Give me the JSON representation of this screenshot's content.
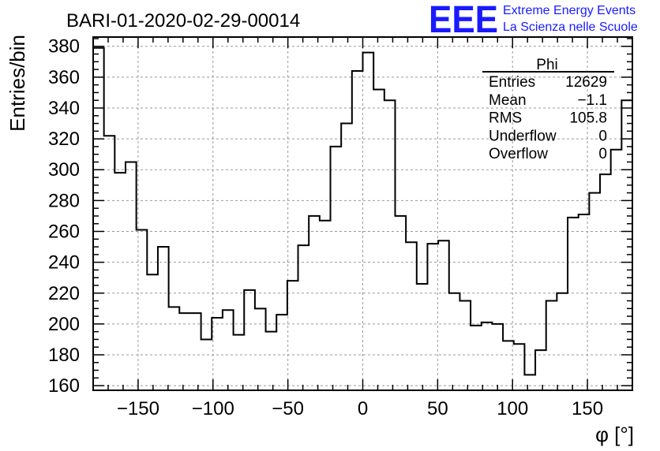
{
  "header": {
    "run_title": "BARI-01-2020-02-29-00014",
    "logo_text": "EEE",
    "logo_line1": "Extreme Energy Events",
    "logo_line2": "La Scienza nelle Scuole",
    "brand_color": "#1a1aff"
  },
  "stats": {
    "title": "Phi",
    "rows": [
      {
        "label": "Entries",
        "value": "12629"
      },
      {
        "label": "Mean",
        "value": "−1.1"
      },
      {
        "label": "RMS",
        "value": "105.8"
      },
      {
        "label": "Underflow",
        "value": "0"
      },
      {
        "label": "Overflow",
        "value": "0"
      }
    ]
  },
  "chart_data": {
    "type": "bar",
    "histogram": true,
    "xlabel": "φ [°]",
    "ylabel": "Entries/bin",
    "xlim": [
      -180,
      180
    ],
    "ylim": [
      157,
      386
    ],
    "bin_width": 7.2,
    "xticks": [
      -150,
      -100,
      -50,
      0,
      50,
      100,
      150
    ],
    "yticks": [
      160,
      180,
      200,
      220,
      240,
      260,
      280,
      300,
      320,
      340,
      360,
      380
    ],
    "grid": true,
    "values": [
      379,
      322,
      298,
      305,
      261,
      232,
      250,
      211,
      207,
      207,
      190,
      204,
      209,
      193,
      222,
      210,
      195,
      206,
      228,
      251,
      270,
      267,
      315,
      330,
      364,
      376,
      352,
      345,
      270,
      253,
      226,
      252,
      254,
      220,
      215,
      199,
      201,
      200,
      189,
      187,
      167,
      183,
      215,
      220,
      269,
      271,
      285,
      297,
      313,
      345
    ]
  }
}
